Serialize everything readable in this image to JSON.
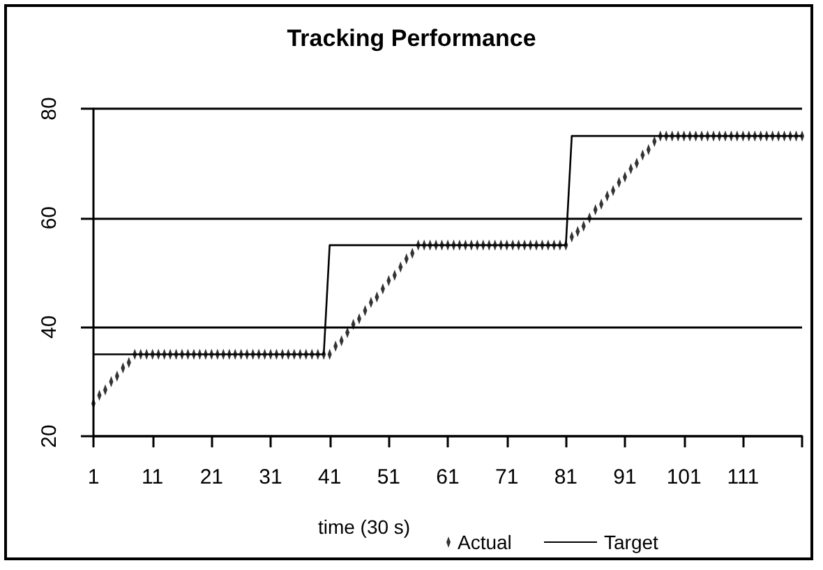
{
  "chart_data": {
    "type": "line",
    "title": "Tracking Performance",
    "xlabel": "time (30 s)",
    "xlim": [
      1,
      121
    ],
    "xticks": [
      1,
      11,
      21,
      31,
      41,
      51,
      61,
      71,
      81,
      91,
      101,
      111,
      {
        "value": 121,
        "label": null
      }
    ],
    "ylim": [
      20,
      80
    ],
    "yticks": [
      20,
      40,
      60,
      80
    ],
    "grid": "y",
    "legend": "bottom",
    "series": [
      {
        "name": "Actual",
        "type": "scatter",
        "marker": "diamond",
        "color": "#000000",
        "x": [
          1,
          2,
          3,
          4,
          5,
          6,
          7,
          8,
          9,
          10,
          11,
          12,
          13,
          14,
          15,
          16,
          17,
          18,
          19,
          20,
          21,
          22,
          23,
          24,
          25,
          26,
          27,
          28,
          29,
          30,
          31,
          32,
          33,
          34,
          35,
          36,
          37,
          38,
          39,
          40,
          41,
          42,
          43,
          44,
          45,
          46,
          47,
          48,
          49,
          50,
          51,
          52,
          53,
          54,
          55,
          56,
          57,
          58,
          59,
          60,
          61,
          62,
          63,
          64,
          65,
          66,
          67,
          68,
          69,
          70,
          71,
          72,
          73,
          74,
          75,
          76,
          77,
          78,
          79,
          80,
          81,
          82,
          83,
          84,
          85,
          86,
          87,
          88,
          89,
          90,
          91,
          92,
          93,
          94,
          95,
          96,
          97,
          98,
          99,
          100,
          101,
          102,
          103,
          104,
          105,
          106,
          107,
          108,
          109,
          110,
          111,
          112,
          113,
          114,
          115,
          116,
          117,
          118,
          119,
          120,
          121
        ],
        "values": [
          26,
          27.5,
          28.5,
          30,
          31,
          32.5,
          33.5,
          35,
          35,
          35,
          35,
          35,
          35,
          35,
          35,
          35,
          35,
          35,
          35,
          35,
          35,
          35,
          35,
          35,
          35,
          35,
          35,
          35,
          35,
          35,
          35,
          35,
          35,
          35,
          35,
          35,
          35,
          35,
          35,
          35,
          35,
          36.5,
          37.5,
          39,
          40.5,
          41.5,
          43,
          44.5,
          45.5,
          47,
          48.5,
          49.5,
          51,
          52.5,
          53.5,
          55,
          55,
          55,
          55,
          55,
          55,
          55,
          55,
          55,
          55,
          55,
          55,
          55,
          55,
          55,
          55,
          55,
          55,
          55,
          55,
          55,
          55,
          55,
          55,
          55,
          55,
          56.5,
          57.5,
          58.5,
          60,
          61.5,
          62.5,
          64,
          65,
          66.5,
          67.5,
          69,
          70,
          71.5,
          72.5,
          74,
          75,
          75,
          75,
          75,
          75,
          75,
          75,
          75,
          75,
          75,
          75,
          75,
          75,
          75,
          75,
          75,
          75,
          75,
          75,
          75,
          75,
          75,
          75,
          75,
          75
        ]
      },
      {
        "name": "Target",
        "type": "line",
        "marker": "none",
        "line_style": "solid",
        "color": "#000000",
        "x": [
          1,
          40,
          41,
          81,
          82,
          121
        ],
        "values": [
          35,
          35,
          55,
          55,
          75,
          75
        ]
      }
    ]
  }
}
